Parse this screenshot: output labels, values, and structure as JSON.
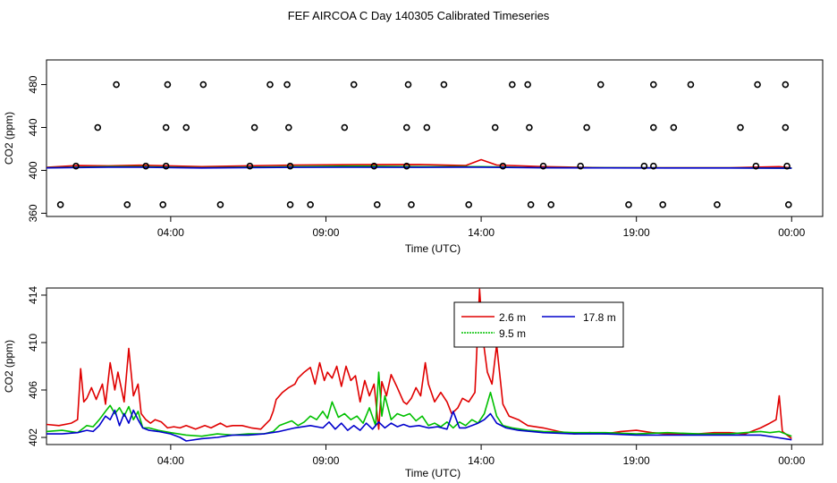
{
  "colors": {
    "s2_6": "#e00000",
    "s9_5": "#00c000",
    "s17_8": "#0000cc",
    "points": "#000000"
  },
  "chart_data": [
    {
      "type": "scatter",
      "title": "FEF AIRCOA C  Day 140305  Calibrated Timeseries",
      "xlabel": "Time (UTC)",
      "ylabel": "CO2 (ppm)",
      "xlim": [
        0,
        25
      ],
      "ylim": [
        357,
        503
      ],
      "x_ticks": [
        4,
        9,
        14,
        19,
        24
      ],
      "x_tick_labels": [
        "04:00",
        "09:00",
        "14:00",
        "19:00",
        "00:00"
      ],
      "y_ticks": [
        360,
        400,
        440,
        480
      ],
      "y_tick_labels": [
        "360",
        "400",
        "440",
        "480"
      ],
      "calibration_points": {
        "x": [
          2.25,
          3.9,
          5.05,
          7.2,
          7.75,
          9.9,
          11.65,
          12.8,
          15.0,
          15.5,
          17.85,
          19.55,
          20.75,
          22.9,
          23.8,
          1.65,
          3.85,
          4.5,
          6.7,
          7.8,
          9.6,
          11.6,
          12.25,
          14.45,
          15.55,
          17.4,
          19.55,
          20.2,
          22.35,
          23.8,
          0.95,
          3.2,
          3.85,
          6.55,
          7.85,
          10.55,
          11.6,
          14.7,
          16.0,
          17.2,
          19.25,
          19.55,
          22.85,
          23.85,
          0.45,
          2.6,
          3.75,
          5.6,
          7.85,
          8.5,
          10.65,
          11.75,
          13.6,
          15.6,
          16.25,
          18.75,
          19.85,
          21.6,
          23.9
        ],
        "y": [
          480,
          480,
          480,
          480,
          480,
          480,
          480,
          480,
          480,
          480,
          480,
          480,
          480,
          480,
          480,
          440,
          440,
          440,
          440,
          440,
          440,
          440,
          440,
          440,
          440,
          440,
          440,
          440,
          440,
          440,
          404,
          404,
          404,
          404,
          404,
          404,
          404,
          404,
          404,
          404,
          404,
          404,
          404,
          404,
          368,
          368,
          368,
          368,
          368,
          368,
          368,
          368,
          368,
          368,
          368,
          368,
          368,
          368,
          368
        ]
      },
      "series": [
        {
          "name": "2.6 m",
          "x": [
            0,
            1,
            2,
            3,
            5,
            8,
            10,
            12,
            13.5,
            14,
            14.5,
            16,
            18,
            20,
            22,
            23.6,
            24
          ],
          "values": [
            402.8,
            404.5,
            404.2,
            404.8,
            403.5,
            405,
            405.3,
            405.5,
            404.5,
            410,
            405,
            403.5,
            402.5,
            402.5,
            402.5,
            403.5,
            402.2
          ]
        },
        {
          "name": "9.5 m",
          "x": [
            0,
            2,
            3,
            5,
            8,
            10,
            12,
            14,
            16,
            18,
            20,
            22,
            24
          ],
          "values": [
            402.4,
            403.5,
            403.5,
            402.5,
            403.5,
            404,
            403.5,
            403.5,
            402.5,
            402.4,
            402.3,
            402.3,
            402.1
          ]
        },
        {
          "name": "17.8 m",
          "x": [
            0,
            2,
            3,
            5,
            8,
            10,
            12,
            14,
            16,
            18,
            20,
            22,
            24
          ],
          "values": [
            402.3,
            403,
            403,
            402.2,
            402.8,
            403,
            402.8,
            403,
            402.4,
            402.3,
            402.2,
            402.2,
            402
          ]
        }
      ]
    },
    {
      "type": "line",
      "xlabel": "Time (UTC)",
      "ylabel": "CO2 (ppm)",
      "xlim": [
        0,
        25
      ],
      "ylim": [
        401.4,
        414.6
      ],
      "x_ticks": [
        4,
        9,
        14,
        19,
        24
      ],
      "x_tick_labels": [
        "04:00",
        "09:00",
        "14:00",
        "19:00",
        "00:00"
      ],
      "y_ticks": [
        402,
        406,
        410,
        414
      ],
      "y_tick_labels": [
        "402",
        "406",
        "410",
        "414"
      ],
      "legend": {
        "position": "top-center",
        "entries": [
          "2.6 m",
          "9.5 m",
          "17.8 m"
        ]
      },
      "series": [
        {
          "name": "2.6 m",
          "x": [
            0,
            0.4,
            0.8,
            1.0,
            1.1,
            1.2,
            1.3,
            1.45,
            1.6,
            1.8,
            1.9,
            2.05,
            2.2,
            2.3,
            2.5,
            2.65,
            2.8,
            2.95,
            3.05,
            3.2,
            3.35,
            3.5,
            3.7,
            3.9,
            4.1,
            4.3,
            4.5,
            4.8,
            5.1,
            5.3,
            5.6,
            5.8,
            6.0,
            6.3,
            6.6,
            6.9,
            7.2,
            7.3,
            7.4,
            7.6,
            7.8,
            8.0,
            8.1,
            8.3,
            8.5,
            8.65,
            8.8,
            8.95,
            9.05,
            9.2,
            9.35,
            9.5,
            9.65,
            9.8,
            9.95,
            10.1,
            10.25,
            10.4,
            10.55,
            10.7,
            10.8,
            10.95,
            11.1,
            11.3,
            11.5,
            11.6,
            11.75,
            11.9,
            12.05,
            12.2,
            12.3,
            12.5,
            12.7,
            12.9,
            13.05,
            13.25,
            13.4,
            13.6,
            13.8,
            13.95,
            14.05,
            14.2,
            14.35,
            14.5,
            14.7,
            14.9,
            15.2,
            15.5,
            16.0,
            16.5,
            17.0,
            17.5,
            18.0,
            18.5,
            19.0,
            19.5,
            20.0,
            20.5,
            21.0,
            21.5,
            22.0,
            22.5,
            23.0,
            23.3,
            23.5,
            23.6,
            23.7,
            24.0
          ],
          "values": [
            403.1,
            403.0,
            403.2,
            403.5,
            407.8,
            405.0,
            405.3,
            406.2,
            405.2,
            406.5,
            404.8,
            408.3,
            406.0,
            407.5,
            405.0,
            409.5,
            405.5,
            406.5,
            404.0,
            403.5,
            403.2,
            403.5,
            403.3,
            402.8,
            402.9,
            402.8,
            403.0,
            402.7,
            403.0,
            402.8,
            403.2,
            402.9,
            403.0,
            403.0,
            402.8,
            402.7,
            403.5,
            404.2,
            405.2,
            405.8,
            406.2,
            406.5,
            407.0,
            407.5,
            407.9,
            406.5,
            408.3,
            406.8,
            407.5,
            407.0,
            408.0,
            406.3,
            408.0,
            406.8,
            407.2,
            405.0,
            406.8,
            405.5,
            406.5,
            402.7,
            406.7,
            405.5,
            407.3,
            406.2,
            405.0,
            404.8,
            405.3,
            406.2,
            405.5,
            408.3,
            406.5,
            405.0,
            405.8,
            405.0,
            404.0,
            404.5,
            405.3,
            405.0,
            405.8,
            414.5,
            410.5,
            407.5,
            406.5,
            409.8,
            404.8,
            403.8,
            403.5,
            403.0,
            402.8,
            402.5,
            402.3,
            402.4,
            402.3,
            402.5,
            402.6,
            402.4,
            402.3,
            402.3,
            402.3,
            402.4,
            402.4,
            402.3,
            402.8,
            403.2,
            403.5,
            405.5,
            402.5,
            401.9
          ]
        },
        {
          "name": "9.5 m",
          "x": [
            0,
            0.5,
            1.0,
            1.3,
            1.5,
            1.7,
            1.9,
            2.05,
            2.2,
            2.35,
            2.5,
            2.65,
            2.8,
            2.95,
            3.1,
            3.3,
            3.6,
            4.0,
            4.5,
            5.0,
            5.5,
            6.0,
            6.5,
            7.0,
            7.3,
            7.5,
            7.7,
            7.9,
            8.1,
            8.3,
            8.5,
            8.7,
            8.9,
            9.05,
            9.2,
            9.4,
            9.6,
            9.8,
            10.0,
            10.2,
            10.4,
            10.6,
            10.7,
            10.8,
            10.9,
            11.1,
            11.3,
            11.5,
            11.7,
            11.9,
            12.1,
            12.3,
            12.5,
            12.7,
            12.9,
            13.1,
            13.3,
            13.5,
            13.7,
            13.9,
            14.1,
            14.3,
            14.5,
            14.7,
            15.0,
            15.5,
            16.0,
            17.0,
            18.0,
            19.0,
            20.0,
            21.0,
            22.0,
            22.5,
            23.0,
            23.3,
            23.6,
            24.0
          ],
          "values": [
            402.5,
            402.6,
            402.4,
            403.0,
            402.9,
            403.5,
            404.2,
            404.7,
            404.0,
            404.5,
            403.8,
            404.6,
            403.5,
            404.2,
            402.8,
            402.8,
            402.6,
            402.4,
            402.2,
            402.1,
            402.3,
            402.2,
            402.3,
            402.3,
            402.5,
            403.0,
            403.2,
            403.4,
            403.0,
            403.3,
            403.8,
            403.5,
            404.2,
            403.6,
            405.0,
            403.7,
            404.0,
            403.5,
            403.8,
            403.2,
            404.5,
            403.0,
            407.5,
            403.8,
            405.5,
            403.5,
            404.0,
            403.8,
            404.0,
            403.4,
            403.8,
            403.0,
            403.2,
            402.9,
            403.3,
            402.8,
            403.3,
            403.0,
            403.5,
            403.2,
            404.0,
            405.8,
            403.8,
            403.0,
            402.8,
            402.6,
            402.5,
            402.4,
            402.4,
            402.3,
            402.4,
            402.3,
            402.3,
            402.4,
            402.5,
            402.4,
            402.5,
            402.1
          ]
        },
        {
          "name": "17.8 m",
          "x": [
            0,
            0.5,
            1.0,
            1.3,
            1.5,
            1.7,
            1.9,
            2.05,
            2.2,
            2.35,
            2.5,
            2.65,
            2.8,
            2.95,
            3.1,
            3.3,
            3.6,
            4.0,
            4.3,
            4.5,
            5.0,
            5.5,
            6.0,
            6.5,
            7.0,
            7.5,
            8.0,
            8.5,
            8.9,
            9.1,
            9.3,
            9.5,
            9.7,
            9.9,
            10.1,
            10.3,
            10.5,
            10.7,
            10.9,
            11.1,
            11.3,
            11.5,
            11.7,
            12.0,
            12.3,
            12.6,
            12.9,
            13.1,
            13.3,
            13.5,
            13.7,
            13.9,
            14.1,
            14.3,
            14.5,
            14.8,
            15.2,
            16.0,
            17.0,
            18.0,
            19.0,
            20.0,
            21.0,
            22.0,
            23.0,
            23.5,
            24.0
          ],
          "values": [
            402.3,
            402.3,
            402.4,
            402.6,
            402.5,
            403.0,
            403.8,
            403.5,
            404.3,
            403.0,
            404.0,
            403.2,
            404.3,
            403.5,
            402.8,
            402.6,
            402.5,
            402.3,
            402.0,
            401.7,
            401.9,
            402.0,
            402.2,
            402.2,
            402.3,
            402.5,
            402.8,
            403.0,
            402.8,
            403.3,
            402.7,
            403.2,
            402.6,
            403.0,
            402.6,
            403.2,
            402.7,
            403.3,
            402.8,
            403.2,
            402.9,
            403.1,
            402.9,
            403.0,
            402.8,
            402.9,
            402.7,
            404.2,
            402.8,
            402.8,
            403.0,
            403.2,
            403.5,
            404.0,
            403.2,
            402.8,
            402.6,
            402.4,
            402.3,
            402.3,
            402.2,
            402.2,
            402.2,
            402.2,
            402.2,
            402.0,
            401.8
          ]
        }
      ]
    }
  ]
}
